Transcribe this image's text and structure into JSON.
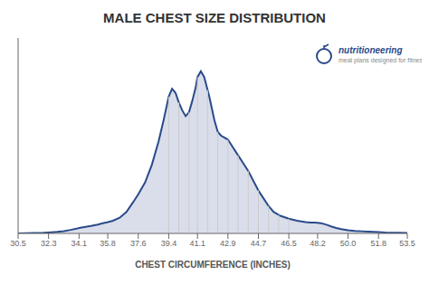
{
  "chart_data": {
    "type": "area",
    "title": "MALE CHEST SIZE DISTRIBUTION",
    "x_label": "CHEST CIRCUMFERENCE (INCHES)",
    "x": [
      30.5,
      31.0,
      31.5,
      32.0,
      32.3,
      32.8,
      33.2,
      33.6,
      34.0,
      34.1,
      34.4,
      34.8,
      35.2,
      35.5,
      35.8,
      36.1,
      36.5,
      36.9,
      37.3,
      37.6,
      38.0,
      38.4,
      38.8,
      39.1,
      39.4,
      39.6,
      39.8,
      40.0,
      40.2,
      40.4,
      40.6,
      40.8,
      41.0,
      41.1,
      41.3,
      41.5,
      41.8,
      42.1,
      42.3,
      42.5,
      42.7,
      42.9,
      43.2,
      43.5,
      43.8,
      44.1,
      44.4,
      44.7,
      45.0,
      45.3,
      45.6,
      46.0,
      46.5,
      47.0,
      47.5,
      47.8,
      48.0,
      48.2,
      48.4,
      48.6,
      48.8,
      49.0,
      49.3,
      49.6,
      50.0,
      50.4,
      50.8,
      51.2,
      51.5,
      51.8,
      52.2,
      52.6,
      53.0,
      53.5
    ],
    "values": [
      0.0,
      0.001,
      0.002,
      0.003,
      0.005,
      0.008,
      0.012,
      0.018,
      0.025,
      0.028,
      0.032,
      0.038,
      0.045,
      0.052,
      0.058,
      0.065,
      0.08,
      0.11,
      0.16,
      0.2,
      0.26,
      0.35,
      0.47,
      0.58,
      0.7,
      0.74,
      0.72,
      0.67,
      0.63,
      0.6,
      0.62,
      0.68,
      0.75,
      0.8,
      0.83,
      0.8,
      0.7,
      0.58,
      0.52,
      0.5,
      0.49,
      0.48,
      0.44,
      0.4,
      0.36,
      0.32,
      0.27,
      0.22,
      0.18,
      0.14,
      0.11,
      0.09,
      0.075,
      0.065,
      0.058,
      0.056,
      0.055,
      0.054,
      0.052,
      0.048,
      0.042,
      0.036,
      0.028,
      0.022,
      0.016,
      0.013,
      0.011,
      0.009,
      0.008,
      0.007,
      0.005,
      0.004,
      0.003,
      0.002
    ],
    "color": "#2a4a8a",
    "xlim": [
      30.5,
      53.5
    ],
    "ylim": [
      0,
      1
    ],
    "xticks": [
      30.5,
      32.3,
      34.1,
      35.8,
      37.6,
      39.4,
      41.1,
      42.9,
      44.7,
      46.5,
      48.2,
      {
        "value": 50.0,
        "label": "50.0"
      },
      51.8,
      53.5
    ],
    "tick_labels": "x",
    "vlines": [
      39.4,
      40.0,
      40.6,
      41.1,
      41.7,
      42.3,
      42.9,
      43.5,
      44.1,
      44.7,
      45.3,
      45.9,
      46.5
    ],
    "annotations": [
      "nutritioneering",
      "meal plans designed for fitness"
    ]
  }
}
